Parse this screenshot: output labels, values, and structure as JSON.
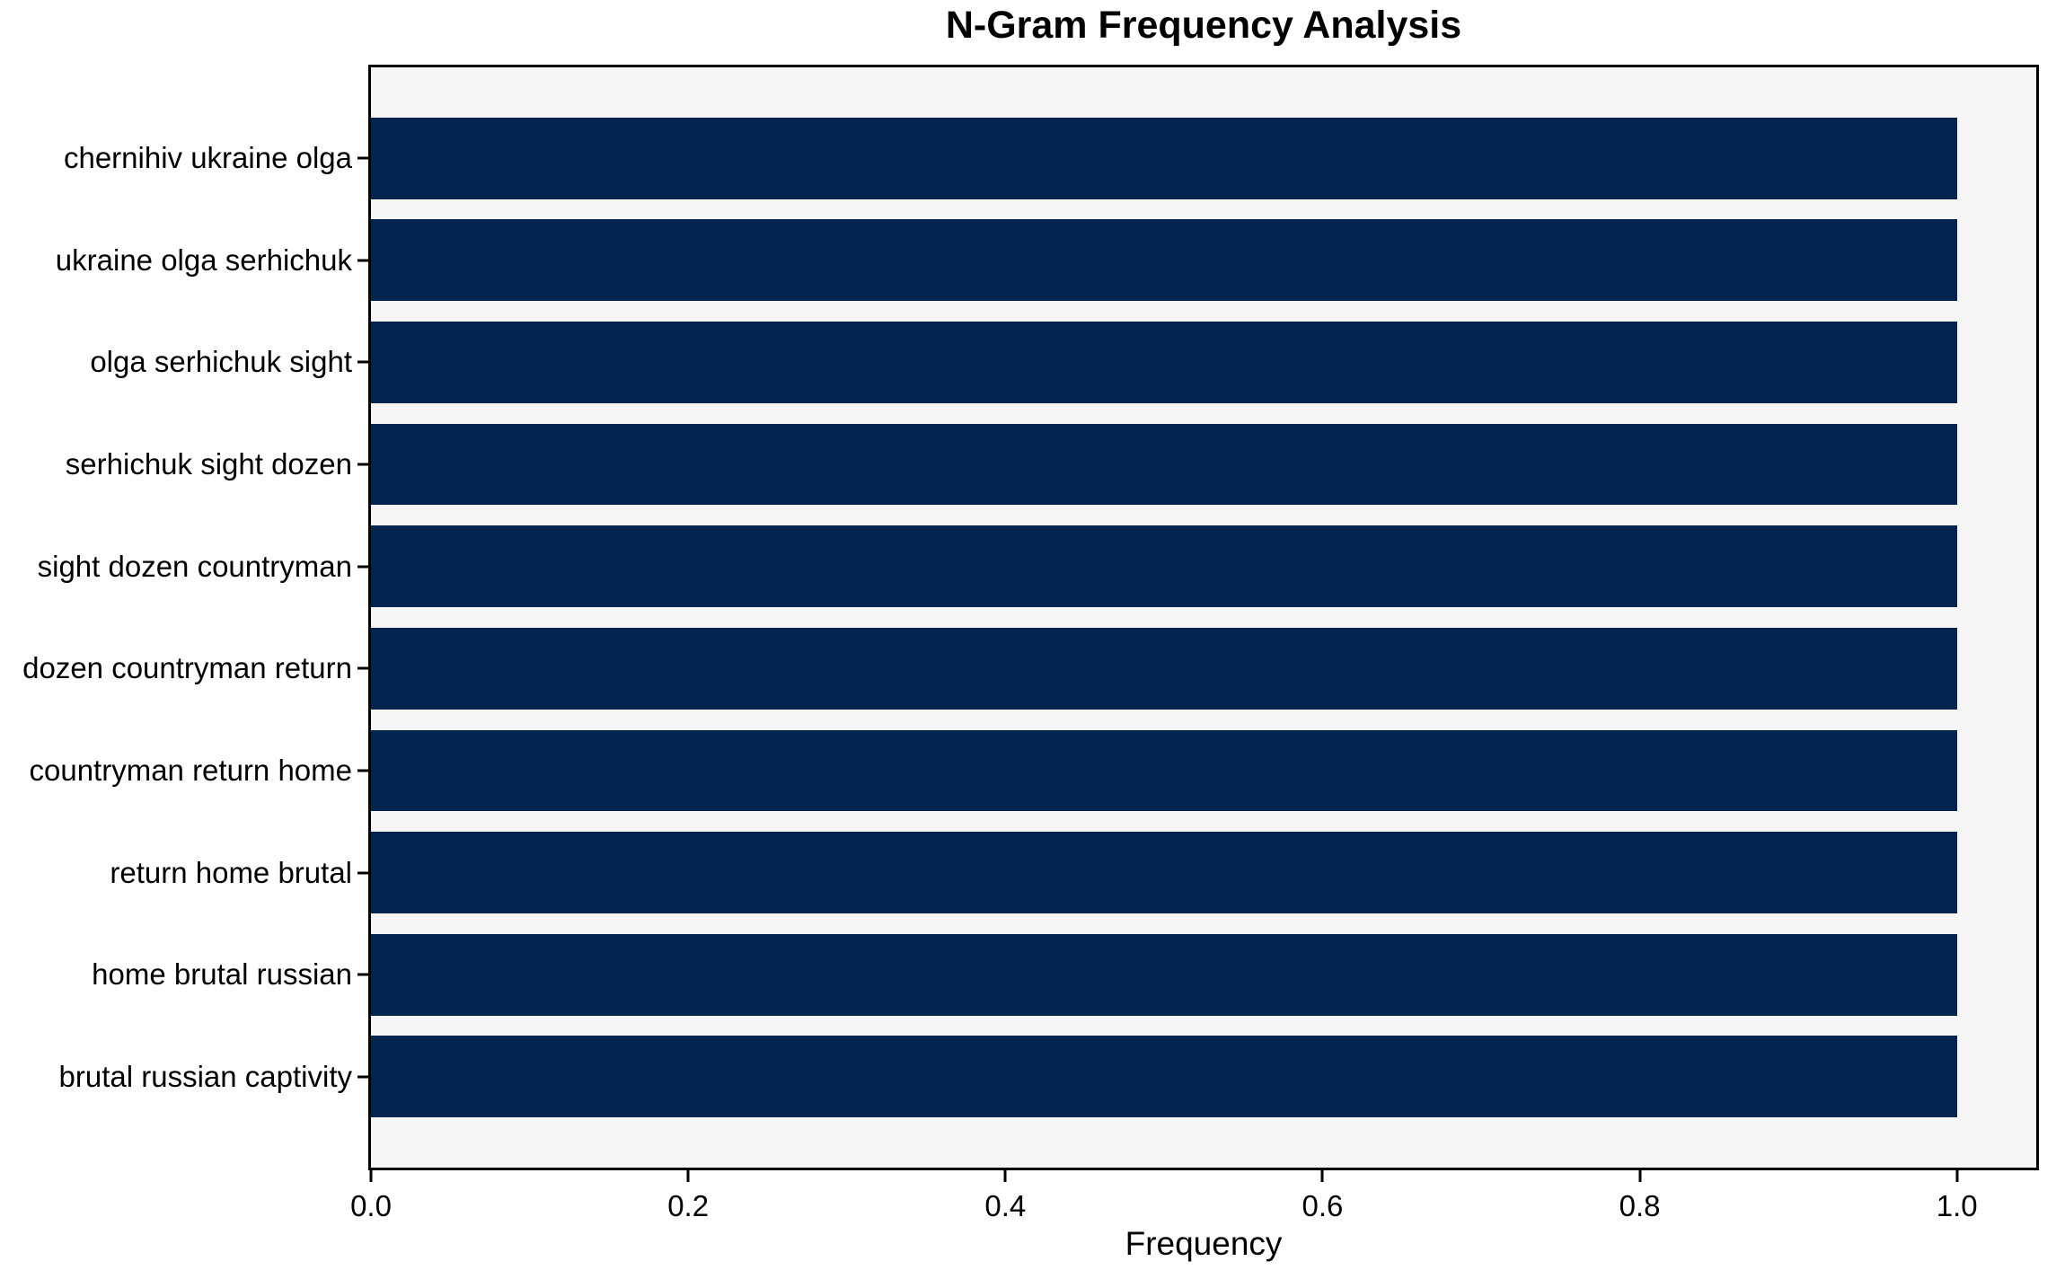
{
  "chart_data": {
    "type": "bar",
    "orientation": "horizontal",
    "title": "N-Gram Frequency Analysis",
    "xlabel": "Frequency",
    "ylabel": "",
    "categories": [
      "chernihiv ukraine olga",
      "ukraine olga serhichuk",
      "olga serhichuk sight",
      "serhichuk sight dozen",
      "sight dozen countryman",
      "dozen countryman return",
      "countryman return home",
      "return home brutal",
      "home brutal russian",
      "brutal russian captivity"
    ],
    "values": [
      1.0,
      1.0,
      1.0,
      1.0,
      1.0,
      1.0,
      1.0,
      1.0,
      1.0,
      1.0
    ],
    "x_ticks": [
      0.0,
      0.2,
      0.4,
      0.6,
      0.8,
      1.0
    ],
    "x_tick_labels": [
      "0.0",
      "0.2",
      "0.4",
      "0.6",
      "0.8",
      "1.0"
    ],
    "xlim": [
      0,
      1.05
    ],
    "grid": false,
    "legend_visible": false,
    "colors": {
      "bar": "#02244e",
      "plot_background": "#f6f6f7",
      "figure_background": "#ffffff",
      "text": "#000000",
      "spine": "#000000"
    }
  }
}
